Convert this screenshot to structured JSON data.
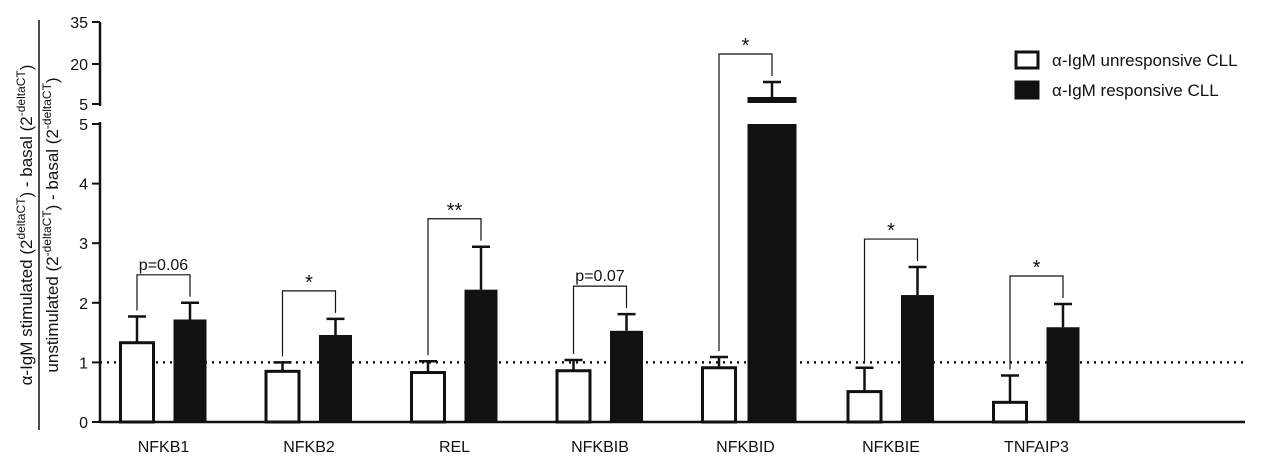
{
  "chart_data": {
    "type": "bar",
    "categories": [
      "NFKB1",
      "NFKB2",
      "REL",
      "NFKBIB",
      "NFKBID",
      "NFKBIE",
      "TNFAIP3"
    ],
    "series": [
      {
        "name": "α-IgM unresponsive CLL",
        "color": "#ffffff",
        "values": [
          1.33,
          0.85,
          0.83,
          0.86,
          0.91,
          0.51,
          0.33
        ],
        "errors": [
          0.44,
          0.15,
          0.19,
          0.18,
          0.18,
          0.4,
          0.45
        ]
      },
      {
        "name": "α-IgM responsive CLL",
        "color": "#111111",
        "values": [
          1.72,
          1.46,
          2.22,
          1.53,
          8.0,
          2.13,
          1.59
        ],
        "errors": [
          0.28,
          0.27,
          0.72,
          0.28,
          2.5,
          0.47,
          0.39
        ]
      }
    ],
    "annotations": [
      "p=0.06",
      "*",
      "**",
      "p=0.07",
      "*",
      "*",
      "*"
    ],
    "ylabel_numerator": "α-IgM stimulated (2",
    "ylabel_numerator_sup": "deltaCT",
    "ylabel_numerator_mid": ") - basal (2",
    "ylabel_numerator_sup2": "-deltaCT",
    "ylabel_numerator_end": ")",
    "ylabel_denominator": "unstimulated (2",
    "ylabel_denominator_sup": "-deltaCT",
    "ylabel_denominator_mid": ") - basal (2",
    "ylabel_denominator_sup2": "-deltaCT",
    "ylabel_denominator_end": ")",
    "y_ticks_lower": [
      0,
      1,
      2,
      3,
      4,
      5
    ],
    "y_ticks_upper": [
      5,
      20,
      35
    ],
    "ylim_lower": [
      0,
      5
    ],
    "ylim_upper": [
      5,
      35
    ],
    "reference_line": 1,
    "legend_position": "top-right"
  }
}
